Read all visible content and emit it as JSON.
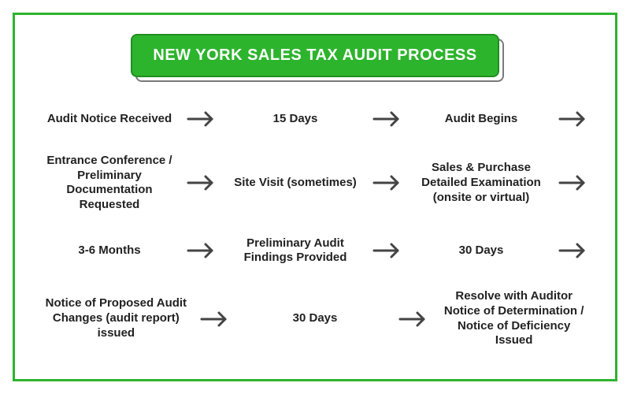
{
  "type": "flowchart",
  "title": "NEW YORK SALES TAX AUDIT PROCESS",
  "colors": {
    "border": "#2db42d",
    "title_bg": "#2db42d",
    "title_border": "#1f8f1f",
    "title_shadow": "#7a7a7a",
    "title_text": "#ffffff",
    "text": "#222222",
    "arrow": "#444444",
    "background": "#ffffff"
  },
  "typography": {
    "title_fontsize": 20,
    "title_weight": "bold",
    "step_fontsize": 15,
    "step_weight": "bold",
    "font_family": "Arial, Helvetica, sans-serif"
  },
  "layout": {
    "rows": 4,
    "cols_per_row": 3,
    "trailing_arrow_on_rows": [
      0,
      1,
      2
    ]
  },
  "rows": [
    {
      "steps": [
        "Audit Notice Received",
        "15 Days",
        "Audit Begins"
      ],
      "trailing_arrow": true
    },
    {
      "steps": [
        "Entrance Conference / Preliminary Documentation Requested",
        "Site Visit (sometimes)",
        "Sales & Purchase Detailed Examination (onsite or virtual)"
      ],
      "trailing_arrow": true
    },
    {
      "steps": [
        "3-6 Months",
        "Preliminary Audit Findings Provided",
        "30 Days"
      ],
      "trailing_arrow": true
    },
    {
      "steps": [
        "Notice of Proposed Audit Changes (audit report) issued",
        "30 Days",
        "Resolve with Auditor Notice of Determination / Notice of Deficiency Issued"
      ],
      "trailing_arrow": false
    }
  ]
}
